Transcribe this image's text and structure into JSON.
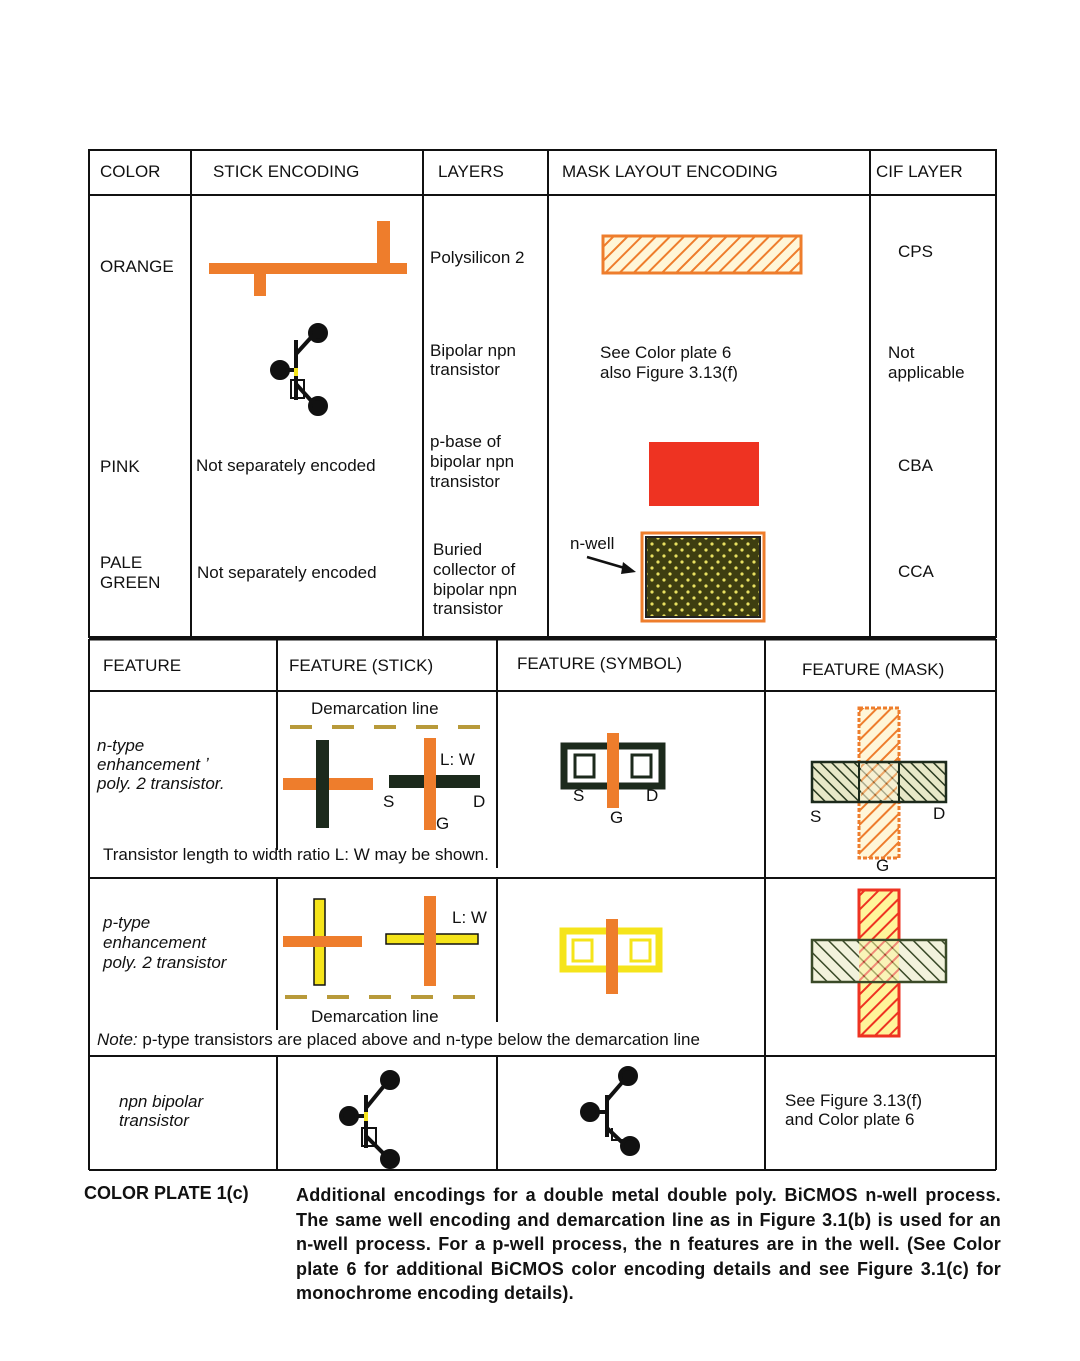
{
  "colors": {
    "orange": "#ee7d2c",
    "pink": "#ee3322",
    "pale_green": "#4a4a14",
    "dark_green": "#1c2a1c",
    "yellow": "#f5e41a",
    "line": "#111111"
  },
  "table1": {
    "headers": [
      "COLOR",
      "STICK ENCODING",
      "LAYERS",
      "MASK LAYOUT ENCODING",
      "CIF LAYER"
    ],
    "rows": [
      {
        "color": "ORANGE",
        "stick": "",
        "layers": [
          "Polysilicon 2"
        ],
        "mask": [],
        "cif": [
          "CPS"
        ]
      },
      {
        "color": "",
        "stick": "",
        "layers": [
          "Bipolar npn",
          "transistor"
        ],
        "mask": [
          "See Color plate 6",
          "also  Figure 3.13(f)"
        ],
        "cif": [
          "Not",
          "applicable"
        ]
      },
      {
        "color": "PINK",
        "stick": "Not separately  encoded",
        "layers": [
          "p-base of",
          "bipolar npn",
          "transistor"
        ],
        "mask": [],
        "cif": [
          "CBA"
        ]
      },
      {
        "color_lines": [
          "PALE",
          "GREEN"
        ],
        "stick": "Not separately  encoded",
        "layers": [
          "Buried",
          "collector of",
          "bipolar npn",
          "transistor"
        ],
        "mask_label": "n-well",
        "cif": [
          "CCA"
        ]
      }
    ]
  },
  "table2": {
    "headers": [
      "FEATURE",
      "FEATURE (STICK)",
      "FEATURE (SYMBOL)",
      "FEATURE (MASK)"
    ],
    "rows": [
      {
        "feature": [
          "n-type",
          "enhancement ʼ",
          "poly. 2 transistor."
        ],
        "stick_label": "Demarcation line",
        "lw": "L: W",
        "s": "S",
        "d": "D",
        "g": "G",
        "note": "Transistor length to width ratio L: W  may  be shown."
      },
      {
        "feature": [
          "p-type",
          "enhancement",
          "poly. 2 transistor"
        ],
        "lw": "L: W",
        "stick_label": "Demarcation line",
        "note_prefix": "Note:",
        "note": " p-type transistors are placed above and n-type below the demarcation line"
      },
      {
        "feature": [
          "npn bipolar",
          "transistor"
        ],
        "mask": [
          "See  Figure 3.13(f)",
          "and Color plate 6"
        ]
      }
    ]
  },
  "caption": {
    "label": "COLOR PLATE  1(c)",
    "text": "Additional encodings for a double metal double poly. BiCMOS n-well process. The same well encoding and demarcation line as in Figure 3.1(b) is used for an n-well process. For a p-well process, the n features are in the well. (See Color plate 6 for additional BiCMOS color encoding details and see Figure 3.1(c) for monochrome encoding details)."
  }
}
